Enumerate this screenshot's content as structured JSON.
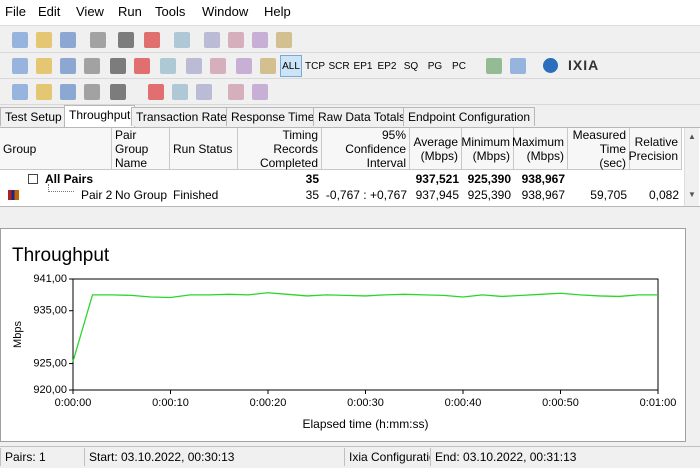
{
  "menu": [
    "File",
    "Edit",
    "View",
    "Run",
    "Tools",
    "Window",
    "Help"
  ],
  "toolbar": {
    "protocol_buttons": [
      "ALL",
      "TCP",
      "SCR",
      "EP1",
      "EP2",
      "SQ",
      "PG",
      "PC"
    ],
    "logo": "IXIA"
  },
  "tabs": [
    "Test Setup",
    "Throughput",
    "Transaction Rate",
    "Response Time",
    "Raw Data Totals",
    "Endpoint Configuration"
  ],
  "active_tab": 1,
  "table": {
    "columns": [
      "Group",
      "Pair Group Name",
      "Run Status",
      "Timing Records Completed",
      "95% Confidence Interval",
      "Average (Mbps)",
      "Minimum (Mbps)",
      "Maximum (Mbps)",
      "Measured Time (sec)",
      "Relative Precision"
    ],
    "rows": [
      [
        "All Pairs",
        null,
        null,
        "35",
        null,
        "937,521",
        "925,390",
        "938,967",
        null,
        null
      ],
      [
        "Pair 2",
        "No Group",
        "Finished",
        "35",
        "-0,767 : +0,767",
        "937,945",
        "925,390",
        "938,967",
        "59,705",
        "0,082"
      ]
    ]
  },
  "chart": {
    "type": "line",
    "title": "Throughput",
    "x_label": "Elapsed time (h:mm:ss)",
    "y_label": "Mbps",
    "color": "#2bd62b",
    "x": [
      0,
      2,
      4,
      6,
      8,
      10,
      12,
      14,
      16,
      18,
      20,
      22,
      24,
      26,
      28,
      30,
      32,
      34,
      36,
      38,
      40,
      42,
      44,
      46,
      48,
      50,
      52,
      54,
      56,
      58,
      60
    ],
    "values": [
      925.4,
      938.0,
      938.0,
      937.9,
      937.6,
      937.5,
      938.0,
      938.0,
      938.1,
      938.0,
      938.4,
      938.1,
      937.8,
      938.0,
      937.9,
      937.8,
      938.0,
      938.1,
      938.0,
      937.9,
      937.6,
      938.0,
      937.7,
      937.9,
      938.1,
      938.3,
      938.0,
      937.8,
      937.7,
      938.0,
      938.0
    ],
    "xlim": [
      0,
      60
    ],
    "ylim": [
      920,
      941
    ],
    "xticks": [
      {
        "value": 0,
        "label": "0:00:00"
      },
      {
        "value": 10,
        "label": "0:00:10"
      },
      {
        "value": 20,
        "label": "0:00:20"
      },
      {
        "value": 30,
        "label": "0:00:30"
      },
      {
        "value": 40,
        "label": "0:00:40"
      },
      {
        "value": 50,
        "label": "0:00:50"
      },
      {
        "value": 60,
        "label": "0:01:00"
      }
    ],
    "yticks": [
      {
        "value": 920,
        "label": "920,00"
      },
      {
        "value": 925,
        "label": "925,00"
      },
      {
        "value": 935,
        "label": "935,00"
      },
      {
        "value": 941,
        "label": "941,00"
      }
    ]
  },
  "status_bar": [
    "Pairs: 1",
    "Start: 03.10.2022, 00:30:13",
    "Ixia Configuratio",
    "End: 03.10.2022, 00:31:13"
  ]
}
